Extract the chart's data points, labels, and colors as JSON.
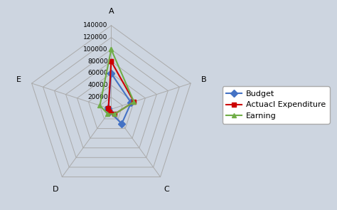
{
  "categories": [
    "A",
    "B",
    "C",
    "D",
    "E"
  ],
  "series": [
    {
      "name": "Budget",
      "values": [
        60000,
        35000,
        30000,
        5000,
        5000
      ],
      "color": "#4472C4",
      "marker": "D",
      "linewidth": 1.5,
      "markersize": 5
    },
    {
      "name": "Actuacl Expenditure",
      "values": [
        80000,
        40000,
        10000,
        5000,
        5000
      ],
      "color": "#CC0000",
      "marker": "s",
      "linewidth": 1.5,
      "markersize": 5
    },
    {
      "name": "Earning",
      "values": [
        100000,
        40000,
        10000,
        10000,
        20000
      ],
      "color": "#70AD47",
      "marker": "^",
      "linewidth": 1.5,
      "markersize": 5
    }
  ],
  "rmax": 140000,
  "rticks": [
    20000,
    40000,
    60000,
    80000,
    100000,
    120000,
    140000
  ],
  "rtick_labels": [
    "20000",
    "40000",
    "60000",
    "80000",
    "100000",
    "120000",
    "140000"
  ],
  "background_color": "#FFFFFF",
  "grid_color": "#AAAAAA",
  "fig_bg": "#CDD5E0",
  "spoke_color": "#AAAAAA",
  "label_fontsize": 8,
  "tick_fontsize": 6.5,
  "legend_fontsize": 8
}
